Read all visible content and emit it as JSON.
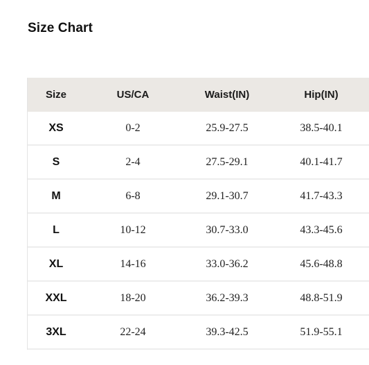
{
  "title": "Size Chart",
  "table": {
    "headers": [
      "Size",
      "US/CA",
      "Waist(IN)",
      "Hip(IN)"
    ],
    "rows": [
      [
        "XS",
        "0-2",
        "25.9-27.5",
        "38.5-40.1"
      ],
      [
        "S",
        "2-4",
        "27.5-29.1",
        "40.1-41.7"
      ],
      [
        "M",
        "6-8",
        "29.1-30.7",
        "41.7-43.3"
      ],
      [
        "L",
        "10-12",
        "30.7-33.0",
        "43.3-45.6"
      ],
      [
        "XL",
        "14-16",
        "33.0-36.2",
        "45.6-48.8"
      ],
      [
        "XXL",
        "18-20",
        "36.2-39.3",
        "48.8-51.9"
      ],
      [
        "3XL",
        "22-24",
        "39.3-42.5",
        "51.9-55.1"
      ]
    ]
  },
  "colors": {
    "header_background": "#ebe8e4",
    "row_divider": "#ededed"
  }
}
